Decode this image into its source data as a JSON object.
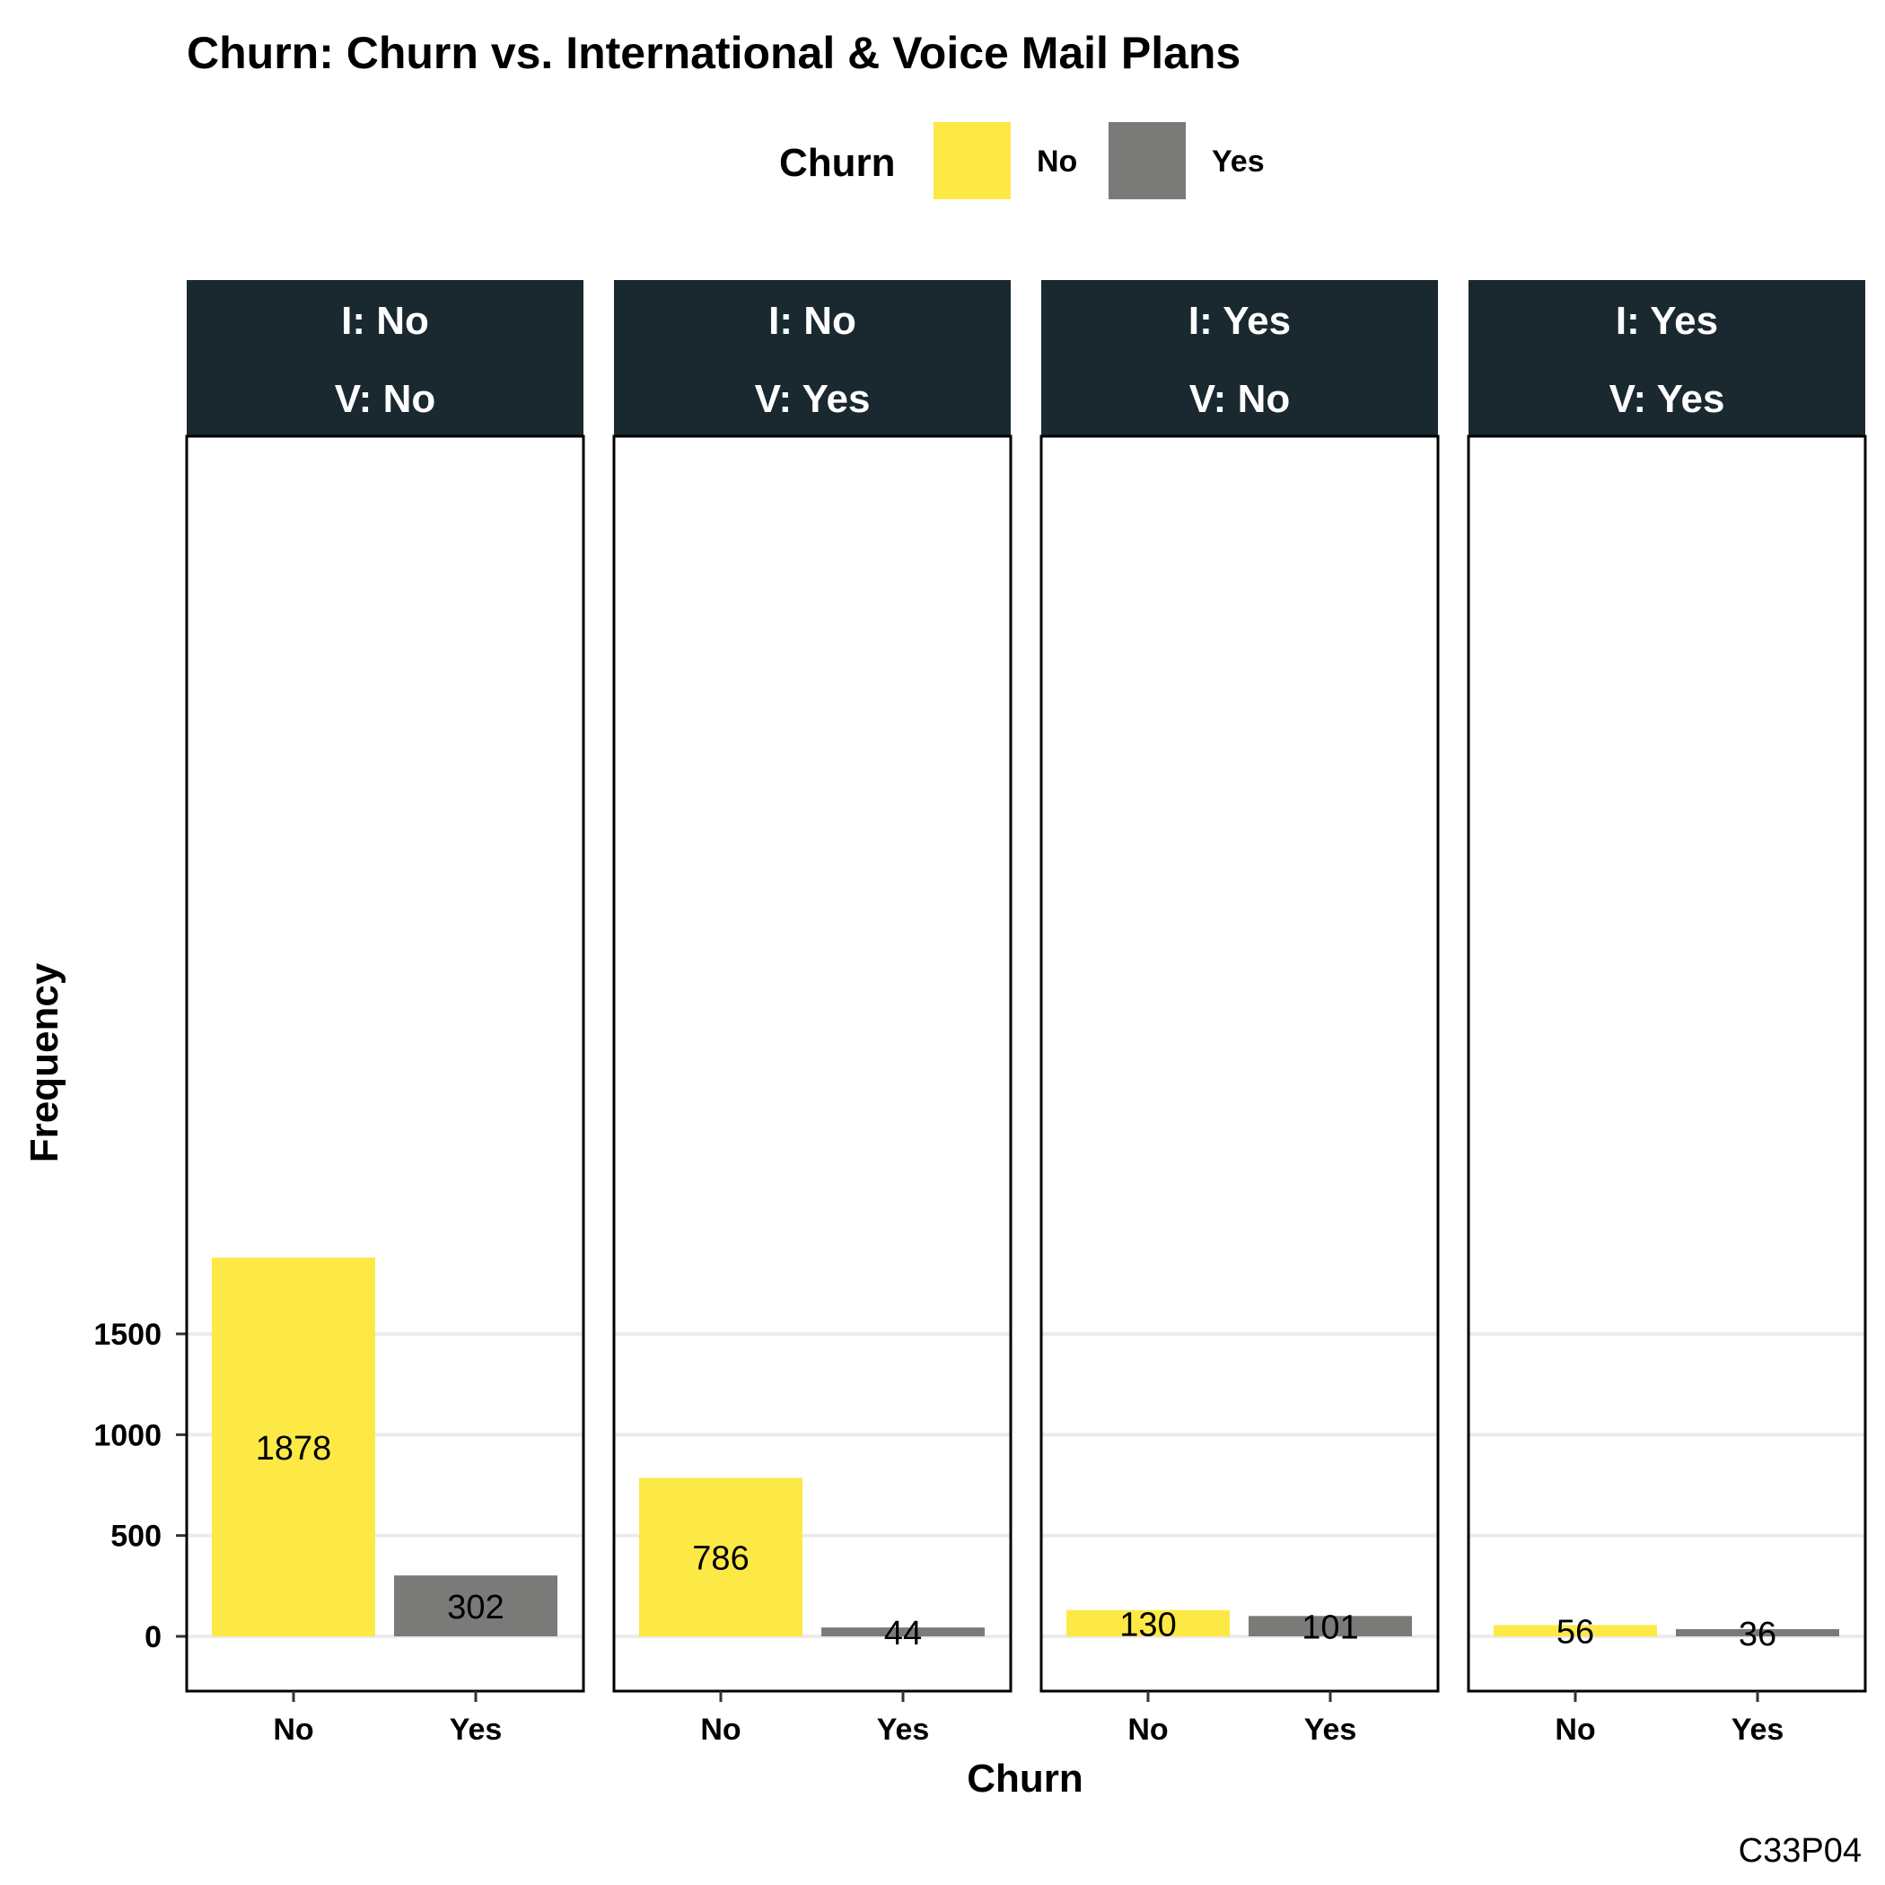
{
  "chart_data": {
    "type": "bar",
    "title": "Churn: Churn vs. International & Voice Mail Plans",
    "xlabel": "Churn",
    "ylabel": "Frequency",
    "caption": "C33P04",
    "legend": {
      "title": "Churn",
      "position": "top",
      "items": [
        {
          "label": "No",
          "color": "#FDE945"
        },
        {
          "label": "Yes",
          "color": "#7A7A78"
        }
      ]
    },
    "categories": [
      "No",
      "Yes"
    ],
    "y_ticks": [
      0,
      500,
      1000,
      1500
    ],
    "ylim": [
      -85,
      1985
    ],
    "grid": true,
    "panels": [
      {
        "strip_top": "I: No",
        "strip_bottom": "V: No",
        "values": [
          1878,
          302
        ]
      },
      {
        "strip_top": "I: No",
        "strip_bottom": "V: Yes",
        "values": [
          786,
          44
        ]
      },
      {
        "strip_top": "I: Yes",
        "strip_bottom": "V: No",
        "values": [
          130,
          101
        ]
      },
      {
        "strip_top": "I: Yes",
        "strip_bottom": "V: Yes",
        "values": [
          56,
          36
        ]
      }
    ],
    "colors": {
      "No": "#FDE945",
      "Yes": "#7A7A78",
      "strip": "#1A2930",
      "grid": "#EBEBEB"
    }
  }
}
